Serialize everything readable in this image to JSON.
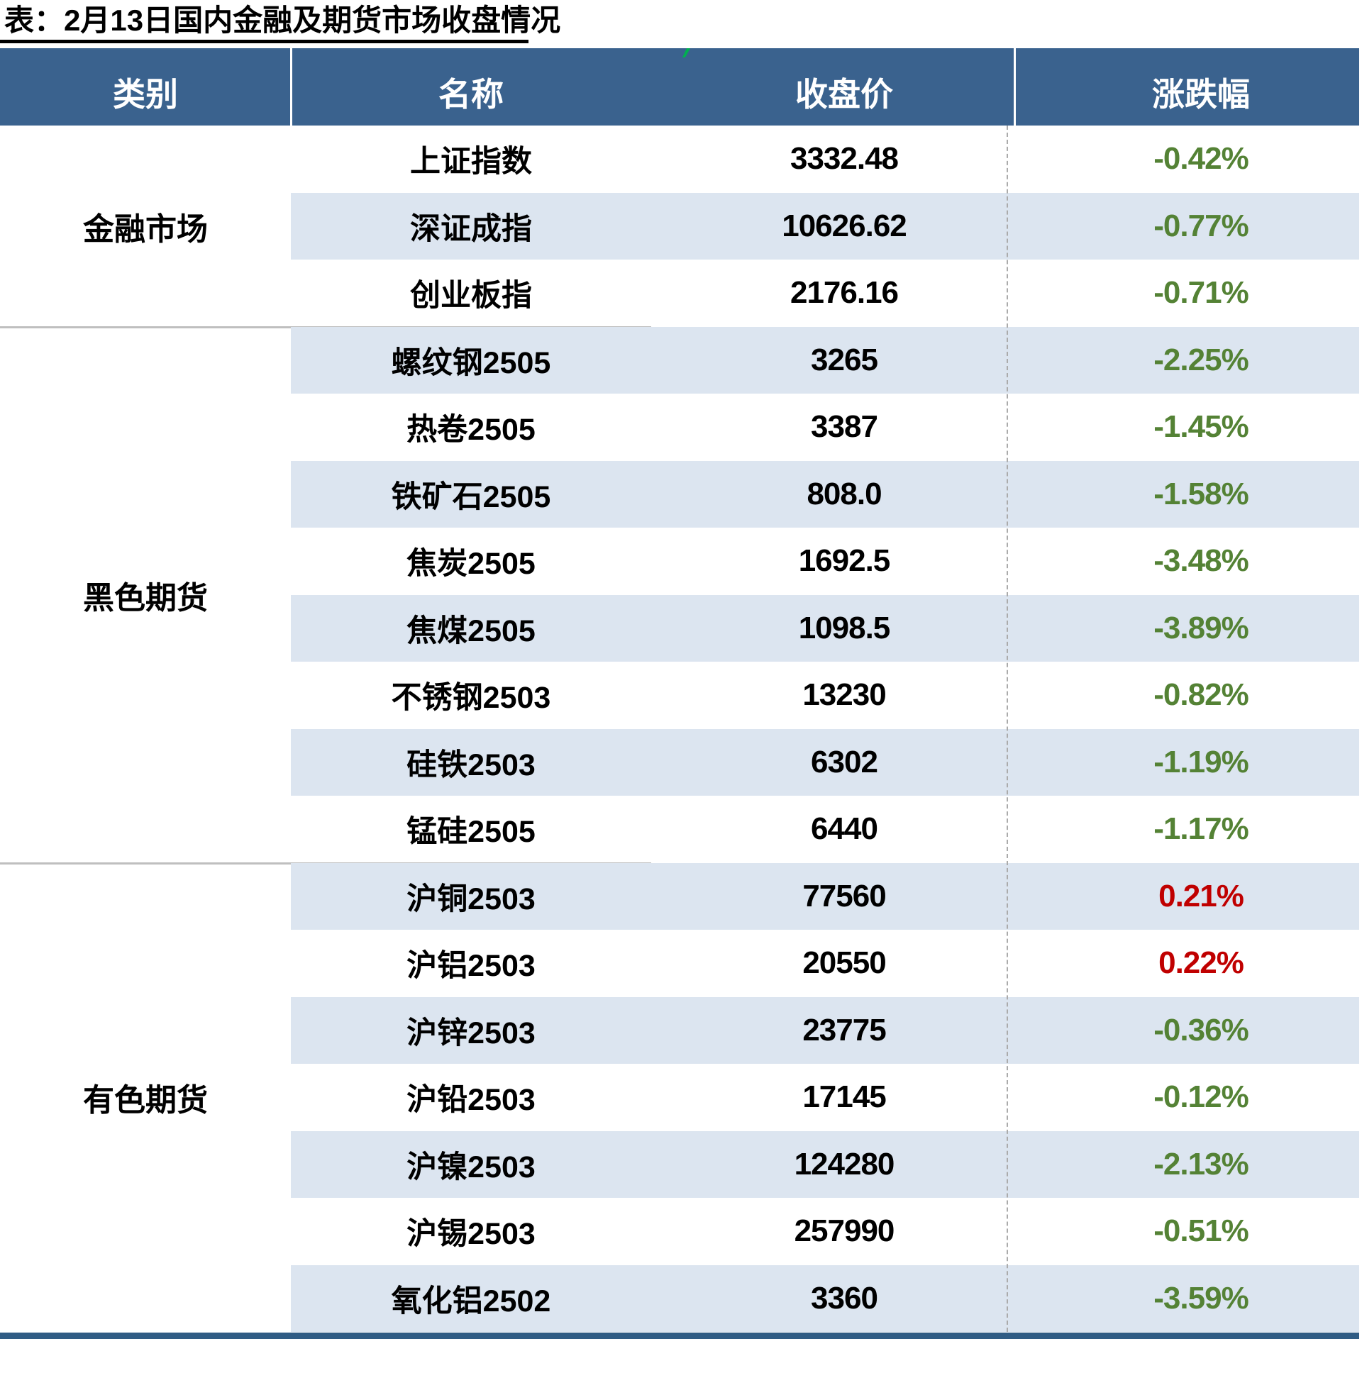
{
  "title": "表：2月13日国内金融及期货市场收盘情况",
  "columns": {
    "category": "类别",
    "name": "名称",
    "close": "收盘价",
    "change": "涨跌幅"
  },
  "colors": {
    "header_bg": "#3A628E",
    "stripe": "#DCE5F0",
    "down_green": "#548235",
    "up_red": "#C00000",
    "separator": "#BFBFBF",
    "dash": "#ABABAB",
    "bottom_bar": "#305C84",
    "flag_green": "#00B050"
  },
  "groups": [
    {
      "category": "金融市场",
      "rows": [
        {
          "name": "上证指数",
          "close": "3332.48",
          "change": "-0.42%",
          "direction": "down"
        },
        {
          "name": "深证成指",
          "close": "10626.62",
          "change": "-0.77%",
          "direction": "down"
        },
        {
          "name": "创业板指",
          "close": "2176.16",
          "change": "-0.71%",
          "direction": "down"
        }
      ]
    },
    {
      "category": "黑色期货",
      "rows": [
        {
          "name": "螺纹钢2505",
          "close": "3265",
          "change": "-2.25%",
          "direction": "down"
        },
        {
          "name": "热卷2505",
          "close": "3387",
          "change": "-1.45%",
          "direction": "down"
        },
        {
          "name": "铁矿石2505",
          "close": "808.0",
          "change": "-1.58%",
          "direction": "down"
        },
        {
          "name": "焦炭2505",
          "close": "1692.5",
          "change": "-3.48%",
          "direction": "down"
        },
        {
          "name": "焦煤2505",
          "close": "1098.5",
          "change": "-3.89%",
          "direction": "down"
        },
        {
          "name": "不锈钢2503",
          "close": "13230",
          "change": "-0.82%",
          "direction": "down"
        },
        {
          "name": "硅铁2503",
          "close": "6302",
          "change": "-1.19%",
          "direction": "down"
        },
        {
          "name": "锰硅2505",
          "close": "6440",
          "change": "-1.17%",
          "direction": "down"
        }
      ]
    },
    {
      "category": "有色期货",
      "rows": [
        {
          "name": "沪铜2503",
          "close": "77560",
          "change": "0.21%",
          "direction": "up"
        },
        {
          "name": "沪铝2503",
          "close": "20550",
          "change": "0.22%",
          "direction": "up"
        },
        {
          "name": "沪锌2503",
          "close": "23775",
          "change": "-0.36%",
          "direction": "down"
        },
        {
          "name": "沪铅2503",
          "close": "17145",
          "change": "-0.12%",
          "direction": "down"
        },
        {
          "name": "沪镍2503",
          "close": "124280",
          "change": "-2.13%",
          "direction": "down"
        },
        {
          "name": "沪锡2503",
          "close": "257990",
          "change": "-0.51%",
          "direction": "down"
        },
        {
          "name": "氧化铝2502",
          "close": "3360",
          "change": "-3.59%",
          "direction": "down"
        }
      ]
    }
  ]
}
